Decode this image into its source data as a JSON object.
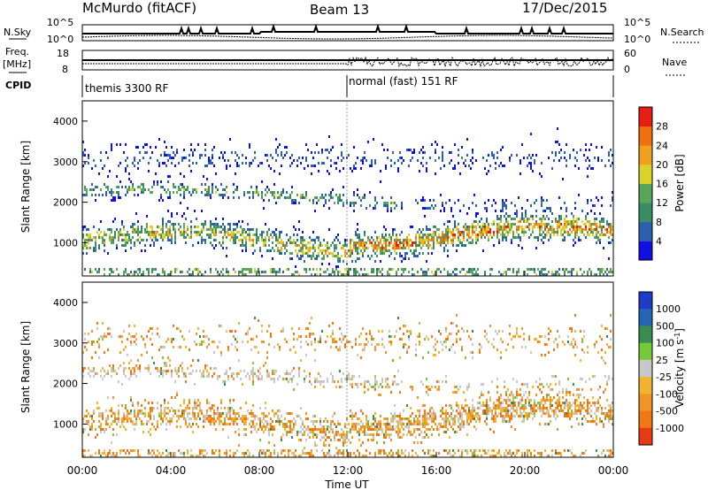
{
  "header": {
    "station": "McMurdo (fitACF)",
    "beam": "Beam 13",
    "date": "17/Dec/2015"
  },
  "noise_panel": {
    "left_label": "N.Sky",
    "right_label": "N.Search",
    "tick_top": "10^5",
    "tick_bottom": "10^0"
  },
  "freq_panel": {
    "left_label_1": "Freq.",
    "left_label_2": "[MHz]",
    "right_label": "Nave",
    "left_tick_top": "18",
    "left_tick_bottom": "8",
    "right_tick_top": "60",
    "right_tick_bottom": "0"
  },
  "cpid": {
    "label": "CPID",
    "segments": [
      {
        "name": "themis 3300 RF",
        "start": "00:00",
        "end": "12:00"
      },
      {
        "name": "normal (fast) 151 RF",
        "start": "12:00",
        "end": "00:00"
      }
    ]
  },
  "chart_data": [
    {
      "type": "heatmap",
      "title": "",
      "xlabel": "",
      "ylabel": "Slant Range [km]",
      "ylim": [
        180,
        4500
      ],
      "xlim": [
        "00:00",
        "00:00"
      ],
      "y_ticks": [
        1000,
        2000,
        3000,
        4000
      ],
      "x_ticks": [
        "00:00",
        "04:00",
        "08:00",
        "12:00",
        "16:00",
        "20:00",
        "00:00"
      ],
      "colorbar": {
        "label": "Power [dB]",
        "ticks": [
          "4",
          "8",
          "12",
          "16",
          "20",
          "24",
          "28"
        ],
        "colors": [
          "#1010e0",
          "#2c5fb0",
          "#3c8c64",
          "#5aa55a",
          "#dcd22d",
          "#f0a020",
          "#f07010",
          "#e61e14"
        ]
      }
    },
    {
      "type": "heatmap",
      "title": "",
      "xlabel": "Time UT",
      "ylabel": "Slant Range [km]",
      "ylim": [
        180,
        4500
      ],
      "y_ticks": [
        1000,
        2000,
        3000,
        4000
      ],
      "x_ticks": [
        "00:00",
        "04:00",
        "08:00",
        "12:00",
        "16:00",
        "20:00",
        "00:00"
      ],
      "colorbar": {
        "label": "Velocity [m s^-1]",
        "ticks": [
          "1000",
          "500",
          "100",
          "25",
          "-25",
          "-100",
          "-500",
          "-1000"
        ],
        "colors": [
          "#1e3cc8",
          "#2864b4",
          "#3c8c50",
          "#78c83c",
          "#c8c8c8",
          "#f0b432",
          "#f09628",
          "#f07814",
          "#e63c14"
        ]
      }
    }
  ],
  "axis": {
    "x_title": "Time UT",
    "ylabel": "Slant Range [km]",
    "time_ticks": [
      "00:00",
      "04:00",
      "08:00",
      "12:00",
      "16:00",
      "20:00",
      "00:00"
    ],
    "range_ticks": [
      "1000",
      "2000",
      "3000",
      "4000"
    ]
  },
  "colors": {
    "frame": "#000000",
    "background": "#ffffff"
  }
}
